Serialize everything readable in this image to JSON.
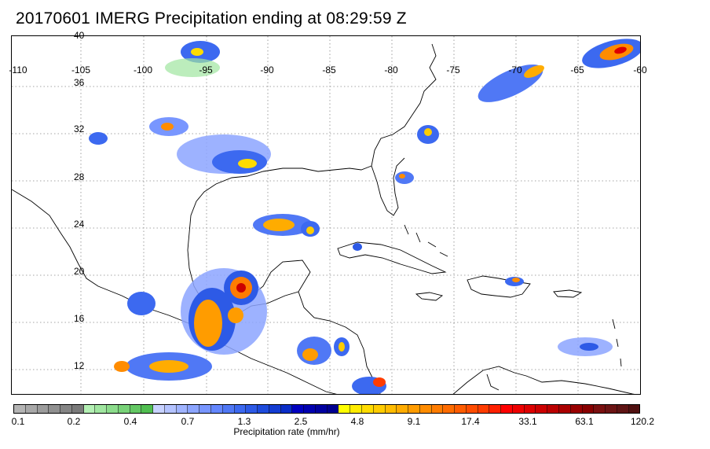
{
  "title": "20170601 IMERG Precipitation ending at 08:29:59 Z",
  "map": {
    "lon_labels": [
      "-110",
      "-105",
      "-100",
      "-95",
      "-90",
      "-85",
      "-80",
      "-75",
      "-70",
      "-65",
      "-60"
    ],
    "lat_labels": [
      "40",
      "36",
      "32",
      "28",
      "24",
      "20",
      "16",
      "12"
    ],
    "grid": "dotted",
    "projection": "equirectangular"
  },
  "colorbar": {
    "title": "Precipitation rate (mm/hr)",
    "tick_labels": [
      "0.1",
      "0.2",
      "0.4",
      "0.7",
      "1.3",
      "2.5",
      "4.8",
      "9.1",
      "17.4",
      "33.1",
      "63.1",
      "120.2"
    ],
    "colors": [
      "#b4b4b4",
      "#a8a8a8",
      "#9c9c9c",
      "#909090",
      "#858585",
      "#7a7a7a",
      "#b4f0b4",
      "#a0e6a0",
      "#8cdc8c",
      "#78d278",
      "#64c864",
      "#50be50",
      "#c8d2ff",
      "#b4c3ff",
      "#a0b4ff",
      "#8ca5ff",
      "#7896ff",
      "#6487ff",
      "#5078f5",
      "#3c69f0",
      "#2d5ae6",
      "#1e4bdc",
      "#143cd2",
      "#0a2dc8",
      "#0000c0",
      "#0000b0",
      "#0000a0",
      "#000090",
      "#ffff00",
      "#ffec00",
      "#ffdc00",
      "#ffcc00",
      "#ffbc00",
      "#ffac00",
      "#ff9c00",
      "#ff8c00",
      "#ff7c00",
      "#ff6c00",
      "#ff5c00",
      "#ff4c00",
      "#ff3c00",
      "#ff2000",
      "#ff0000",
      "#ee0000",
      "#dd0000",
      "#cc0000",
      "#bb0000",
      "#aa0000",
      "#990000",
      "#880000",
      "#7a1010",
      "#6c1414",
      "#5e1414",
      "#501010"
    ]
  }
}
